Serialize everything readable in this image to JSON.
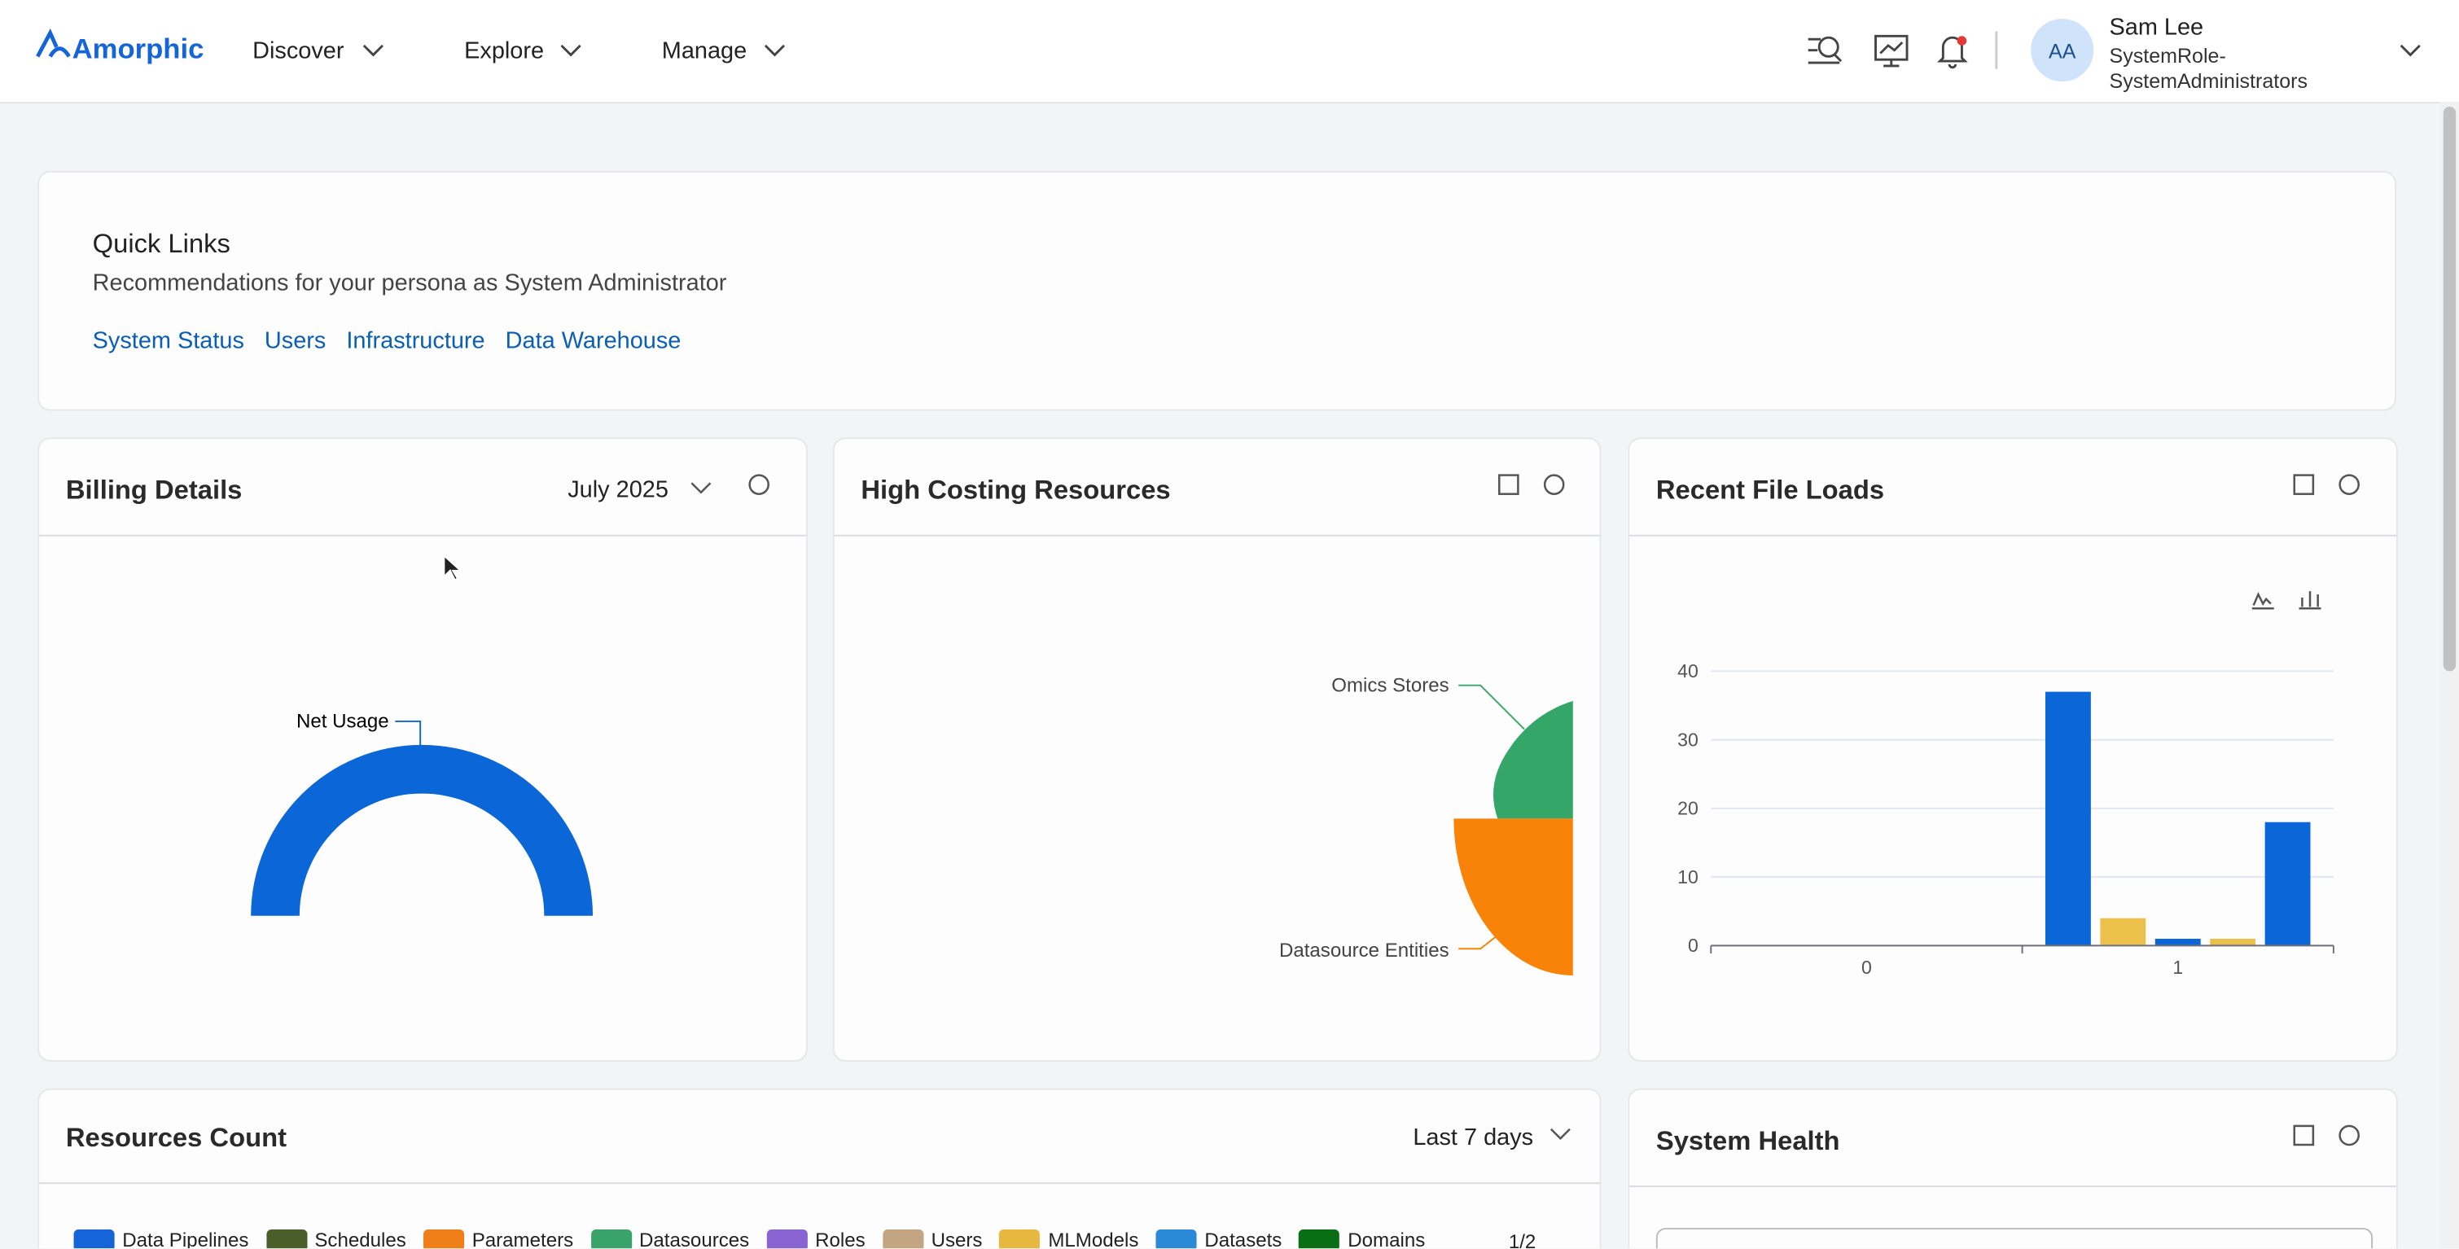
{
  "header": {
    "logo": "Amorphic",
    "nav": [
      "Discover",
      "Explore",
      "Manage"
    ],
    "user": {
      "initials": "AA",
      "name": "Sam Lee",
      "role_line1": "SystemRole-",
      "role_line2": "SystemAdministrators"
    }
  },
  "quick_links": {
    "title": "Quick Links",
    "subtitle": "Recommendations for your persona as System Administrator",
    "links": [
      "System Status",
      "Users",
      "Infrastructure",
      "Data Warehouse"
    ]
  },
  "billing": {
    "title": "Billing Details",
    "period": "July 2025",
    "gauge_label": "Net Usage"
  },
  "high_costing": {
    "title": "High Costing Resources",
    "labels": [
      "Omics Stores",
      "Datasource Entities"
    ]
  },
  "chart_data": {
    "type": "bar",
    "title": "Recent File Loads",
    "categories": [
      "0",
      "1"
    ],
    "series": [
      {
        "color": "#0b66d8",
        "values": [
          0,
          37
        ]
      },
      {
        "color": "#ebc04b",
        "values": [
          0,
          4
        ]
      },
      {
        "color": "#0b66d8",
        "values": [
          0,
          1
        ]
      },
      {
        "color": "#ebc04b",
        "values": [
          0,
          1
        ]
      },
      {
        "color": "#0b66d8",
        "values": [
          0,
          18
        ]
      }
    ],
    "ylim": [
      0,
      40
    ],
    "yticks": [
      0,
      10,
      20,
      30,
      40
    ],
    "grid": true
  },
  "resources_count": {
    "title": "Resources Count",
    "period": "Last 7 days",
    "legend": [
      {
        "name": "Data Pipelines",
        "color": "#1565d8"
      },
      {
        "name": "Schedules",
        "color": "#4a5e2a"
      },
      {
        "name": "Parameters",
        "color": "#f07f1a"
      },
      {
        "name": "Datasources",
        "color": "#3aa36a"
      },
      {
        "name": "Roles",
        "color": "#8a63d2"
      },
      {
        "name": "Users",
        "color": "#c4a582"
      },
      {
        "name": "MLModels",
        "color": "#e6b840"
      },
      {
        "name": "Datasets",
        "color": "#2b8ad8"
      },
      {
        "name": "Domains",
        "color": "#0a6e14"
      }
    ],
    "page": "1/2"
  },
  "system_health": {
    "title": "System Health"
  }
}
